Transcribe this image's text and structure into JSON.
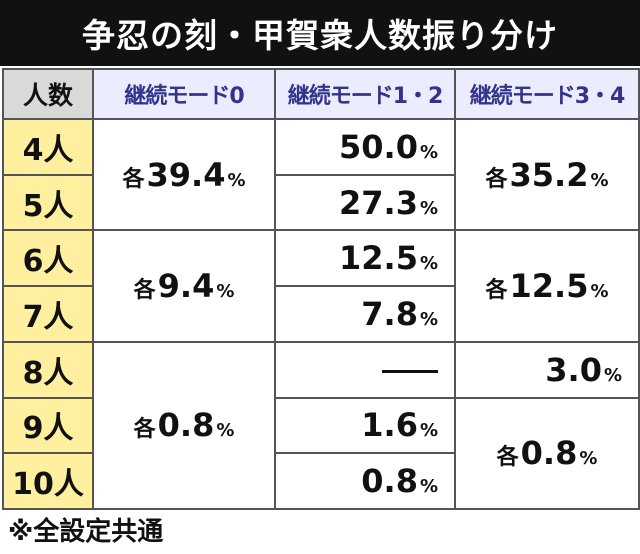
{
  "title": "争忍の刻・甲賀衆人数振り分け",
  "table": {
    "headers": [
      "人数",
      "継続モード0",
      "継続モード1・2",
      "継続モード3・4"
    ],
    "each_prefix": "各",
    "percent_sign": "%",
    "rows": [
      "4人",
      "5人",
      "6人",
      "7人",
      "8人",
      "9人",
      "10人"
    ],
    "mode0": [
      "39.4",
      "9.4",
      "0.8"
    ],
    "mode12": [
      "50.0",
      "27.3",
      "12.5",
      "7.8",
      "",
      "1.6",
      "0.8"
    ],
    "mode34": [
      "35.2",
      "12.5",
      "3.0",
      "0.8"
    ]
  },
  "footnote": "※全設定共通"
}
